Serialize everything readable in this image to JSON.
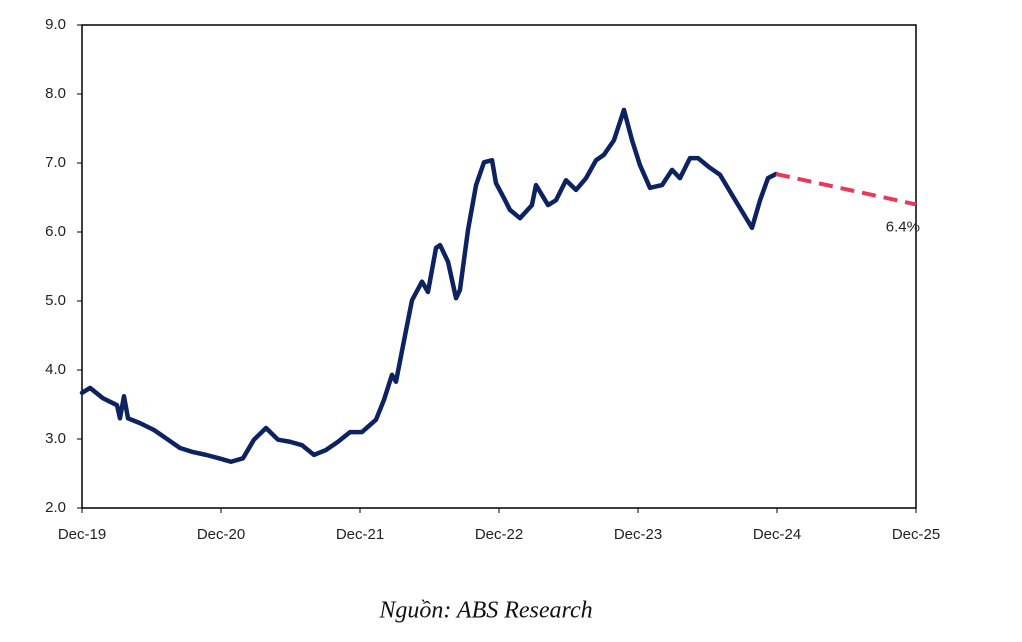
{
  "chart_data": {
    "type": "line",
    "source": "Nguồn: ABS Research",
    "annotation": "6.4%",
    "xlim": [
      0,
      6
    ],
    "xticks": [
      {
        "value": 0,
        "label": "Dec-19"
      },
      {
        "value": 1,
        "label": "Dec-20"
      },
      {
        "value": 2,
        "label": "Dec-21"
      },
      {
        "value": 3,
        "label": "Dec-22"
      },
      {
        "value": 4,
        "label": "Dec-23"
      },
      {
        "value": 5,
        "label": "Dec-24"
      },
      {
        "value": 6,
        "label": "Dec-25"
      }
    ],
    "ylim": [
      2,
      9
    ],
    "yticks": [
      {
        "value": 2,
        "label": "2.0"
      },
      {
        "value": 3,
        "label": "3.0"
      },
      {
        "value": 4,
        "label": "4.0"
      },
      {
        "value": 5,
        "label": "5.0"
      },
      {
        "value": 6,
        "label": "6.0"
      },
      {
        "value": 7,
        "label": "7.0"
      },
      {
        "value": 8,
        "label": "8.0"
      },
      {
        "value": 9,
        "label": "9.0"
      }
    ],
    "series": [
      {
        "color": "#0d2260",
        "dashed": false,
        "x": [
          0,
          0.058,
          0.151,
          0.252,
          0.273,
          0.302,
          0.331,
          0.417,
          0.518,
          0.619,
          0.705,
          0.799,
          0.892,
          0.986,
          1.072,
          1.158,
          1.237,
          1.324,
          1.41,
          1.496,
          1.583,
          1.669,
          1.755,
          1.842,
          1.928,
          2.014,
          2.115,
          2.173,
          2.23,
          2.259,
          2.317,
          2.374,
          2.446,
          2.489,
          2.547,
          2.576,
          2.633,
          2.691,
          2.719,
          2.777,
          2.835,
          2.892,
          2.95,
          2.978,
          3.036,
          3.079,
          3.151,
          3.237,
          3.266,
          3.353,
          3.41,
          3.482,
          3.554,
          3.626,
          3.698,
          3.755,
          3.827,
          3.899,
          3.957,
          4.014,
          4.086,
          4.173,
          4.245,
          4.302,
          4.374,
          4.432,
          4.518,
          4.59,
          4.676,
          4.763,
          4.82,
          4.878,
          4.935,
          4.993
        ],
        "values": [
          3.67,
          3.74,
          3.59,
          3.49,
          3.3,
          3.62,
          3.3,
          3.23,
          3.13,
          2.99,
          2.87,
          2.81,
          2.77,
          2.72,
          2.67,
          2.72,
          2.99,
          3.16,
          2.99,
          2.96,
          2.91,
          2.77,
          2.84,
          2.96,
          3.1,
          3.1,
          3.28,
          3.57,
          3.93,
          3.83,
          4.43,
          5.01,
          5.28,
          5.13,
          5.77,
          5.81,
          5.57,
          5.04,
          5.16,
          6.03,
          6.68,
          7.01,
          7.04,
          6.71,
          6.49,
          6.32,
          6.2,
          6.39,
          6.68,
          6.39,
          6.46,
          6.75,
          6.61,
          6.78,
          7.04,
          7.12,
          7.33,
          7.77,
          7.33,
          6.97,
          6.64,
          6.68,
          6.9,
          6.78,
          7.07,
          7.07,
          6.93,
          6.83,
          6.54,
          6.25,
          6.06,
          6.46,
          6.78,
          6.84
        ]
      },
      {
        "color": "#e8395a",
        "dashed": true,
        "x": [
          4.993,
          6
        ],
        "values": [
          6.84,
          6.4
        ]
      }
    ]
  }
}
